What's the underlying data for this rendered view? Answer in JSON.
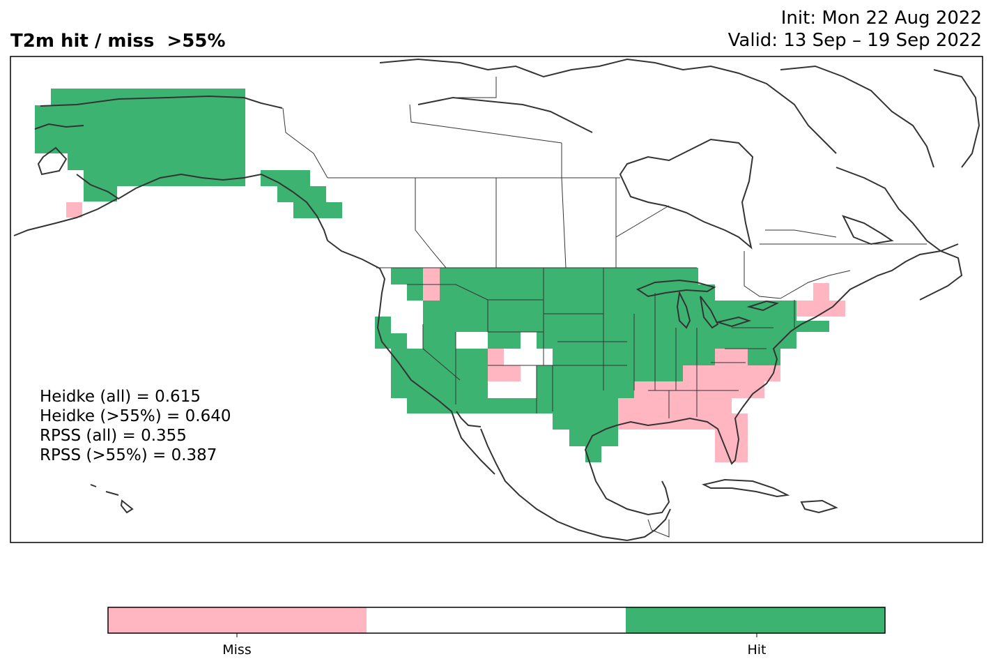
{
  "title": "T2m hit / miss  >55%",
  "init": "Init: Mon 22 Aug 2022",
  "valid": "Valid: 13 Sep – 19 Sep 2022",
  "stats": [
    "Heidke (all) = 0.615",
    "Heidke (>55%) = 0.640",
    "RPSS (all) = 0.355",
    "RPSS (>55%) = 0.387"
  ],
  "colorbar": {
    "categories": [
      "Miss",
      "Hit"
    ],
    "colors": {
      "miss": "#ffb6c1",
      "neutral": "#ffffff",
      "hit": "#3cb371"
    }
  },
  "colors": {
    "hit": "#3cb371",
    "miss": "#ffb6c1",
    "coast": "#333333"
  }
}
